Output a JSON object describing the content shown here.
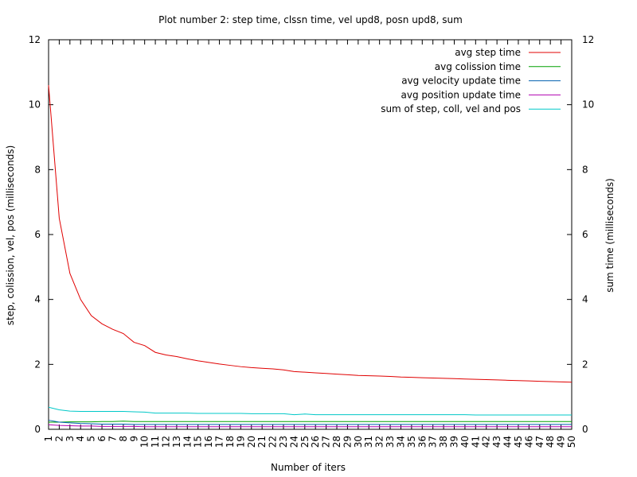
{
  "chart_data": {
    "type": "line",
    "title": "Plot number 2: step time, clssn time, vel upd8, posn upd8, sum",
    "xlabel": "Number of iters",
    "ylabel": "step, colission, vel, pos (milliseconds)",
    "y2label": "sum time (milliseconds)",
    "xlim": [
      1,
      50
    ],
    "ylim": [
      0,
      12
    ],
    "y2lim": [
      0,
      12
    ],
    "yticks": [
      "0",
      "2",
      "4",
      "6",
      "8",
      "10",
      "12"
    ],
    "x": [
      1,
      2,
      3,
      4,
      5,
      6,
      7,
      8,
      9,
      10,
      11,
      12,
      13,
      14,
      15,
      16,
      17,
      18,
      19,
      20,
      21,
      22,
      23,
      24,
      25,
      26,
      27,
      28,
      29,
      30,
      31,
      32,
      33,
      34,
      35,
      36,
      37,
      38,
      39,
      40,
      41,
      42,
      43,
      44,
      45,
      46,
      47,
      48,
      49,
      50
    ],
    "grid": false,
    "legend_position": "top-right",
    "series": [
      {
        "name": "avg step time",
        "color": "#e00000",
        "values": [
          10.6,
          6.5,
          4.8,
          4.0,
          3.5,
          3.25,
          3.08,
          2.95,
          2.68,
          2.58,
          2.37,
          2.29,
          2.24,
          2.17,
          2.11,
          2.06,
          2.01,
          1.97,
          1.93,
          1.9,
          1.88,
          1.86,
          1.83,
          1.78,
          1.76,
          1.74,
          1.72,
          1.7,
          1.68,
          1.66,
          1.65,
          1.64,
          1.63,
          1.61,
          1.6,
          1.59,
          1.58,
          1.57,
          1.56,
          1.55,
          1.54,
          1.53,
          1.52,
          1.51,
          1.5,
          1.49,
          1.48,
          1.47,
          1.46,
          1.45
        ]
      },
      {
        "name": "avg colission time",
        "color": "#00a000",
        "values": [
          0.22,
          0.22,
          0.23,
          0.23,
          0.23,
          0.24,
          0.24,
          0.25,
          0.24,
          0.24,
          0.24,
          0.24,
          0.24,
          0.24,
          0.24,
          0.24,
          0.24,
          0.24,
          0.24,
          0.24,
          0.24,
          0.24,
          0.24,
          0.24,
          0.24,
          0.24,
          0.24,
          0.24,
          0.24,
          0.24,
          0.24,
          0.24,
          0.24,
          0.24,
          0.24,
          0.24,
          0.24,
          0.24,
          0.24,
          0.24,
          0.24,
          0.24,
          0.24,
          0.24,
          0.24,
          0.24,
          0.24,
          0.24,
          0.24,
          0.24
        ]
      },
      {
        "name": "avg velocity update time",
        "color": "#0060b0",
        "values": [
          0.28,
          0.22,
          0.2,
          0.18,
          0.17,
          0.16,
          0.16,
          0.16,
          0.15,
          0.15,
          0.15,
          0.15,
          0.15,
          0.15,
          0.15,
          0.15,
          0.15,
          0.15,
          0.15,
          0.15,
          0.15,
          0.15,
          0.15,
          0.15,
          0.15,
          0.15,
          0.15,
          0.15,
          0.15,
          0.15,
          0.15,
          0.15,
          0.15,
          0.15,
          0.15,
          0.15,
          0.15,
          0.15,
          0.15,
          0.15,
          0.15,
          0.15,
          0.15,
          0.15,
          0.15,
          0.15,
          0.15,
          0.15,
          0.15,
          0.15
        ]
      },
      {
        "name": "avg position update time",
        "color": "#b000b0",
        "values": [
          0.14,
          0.12,
          0.11,
          0.1,
          0.1,
          0.09,
          0.09,
          0.09,
          0.09,
          0.08,
          0.08,
          0.08,
          0.08,
          0.08,
          0.08,
          0.08,
          0.08,
          0.08,
          0.08,
          0.08,
          0.08,
          0.08,
          0.08,
          0.08,
          0.08,
          0.08,
          0.08,
          0.08,
          0.08,
          0.08,
          0.08,
          0.08,
          0.08,
          0.08,
          0.08,
          0.08,
          0.08,
          0.08,
          0.08,
          0.08,
          0.08,
          0.08,
          0.08,
          0.08,
          0.08,
          0.08,
          0.08,
          0.08,
          0.08,
          0.08
        ]
      },
      {
        "name": "sum of step, coll, vel and pos",
        "color": "#00c8c8",
        "values": [
          0.68,
          0.6,
          0.56,
          0.55,
          0.55,
          0.55,
          0.55,
          0.55,
          0.54,
          0.53,
          0.5,
          0.5,
          0.5,
          0.5,
          0.49,
          0.49,
          0.49,
          0.49,
          0.49,
          0.48,
          0.48,
          0.48,
          0.48,
          0.45,
          0.47,
          0.45,
          0.45,
          0.45,
          0.45,
          0.45,
          0.45,
          0.45,
          0.45,
          0.45,
          0.45,
          0.45,
          0.45,
          0.45,
          0.45,
          0.45,
          0.44,
          0.44,
          0.44,
          0.44,
          0.44,
          0.44,
          0.44,
          0.44,
          0.44,
          0.44
        ]
      }
    ]
  }
}
